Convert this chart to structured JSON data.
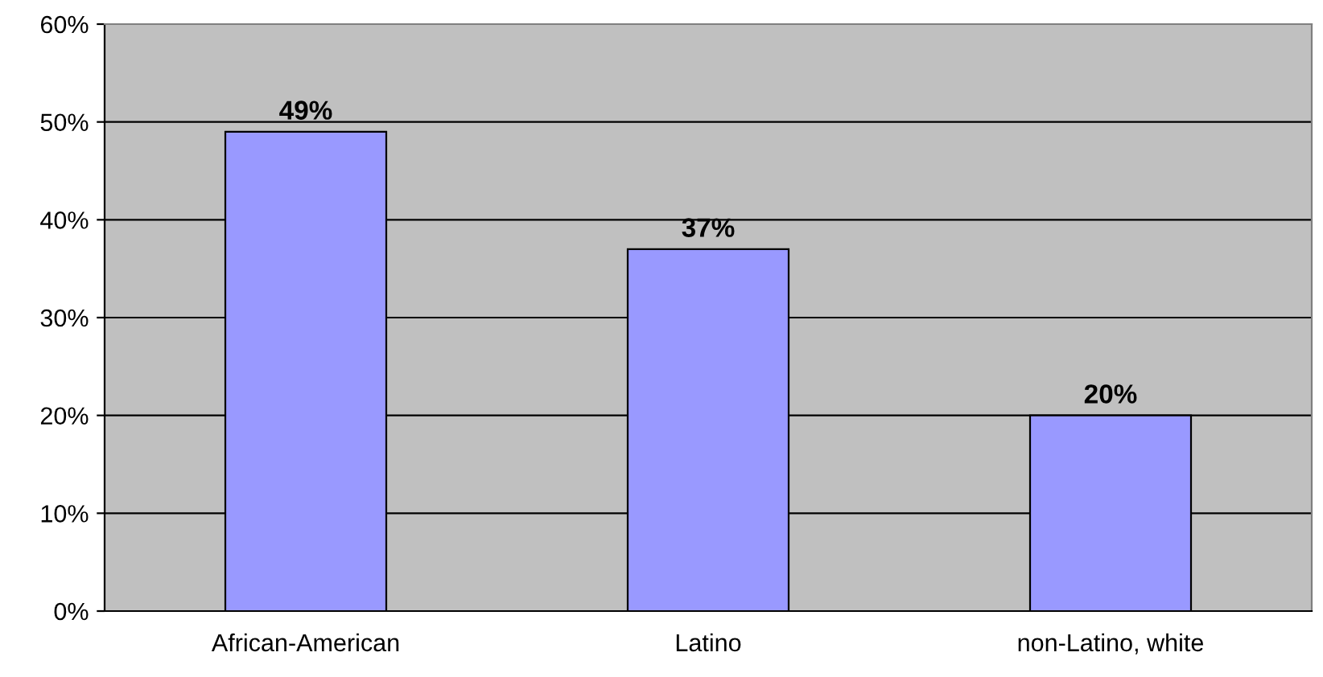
{
  "chart_data": {
    "type": "bar",
    "categories": [
      "African-American",
      "Latino",
      "non-Latino, white"
    ],
    "values": [
      49,
      37,
      20
    ],
    "value_labels": [
      "49%",
      "37%",
      "20%"
    ],
    "color": "#9999ff",
    "ylim": [
      0,
      60
    ],
    "yticks": [
      {
        "value": 0,
        "label": "0%"
      },
      {
        "value": 10,
        "label": "10%"
      },
      {
        "value": 20,
        "label": "20%"
      },
      {
        "value": 30,
        "label": "30%"
      },
      {
        "value": 40,
        "label": "40%"
      },
      {
        "value": 50,
        "label": "50%"
      },
      {
        "value": 60,
        "label": "60%"
      }
    ],
    "grid": "y",
    "legend": false
  }
}
